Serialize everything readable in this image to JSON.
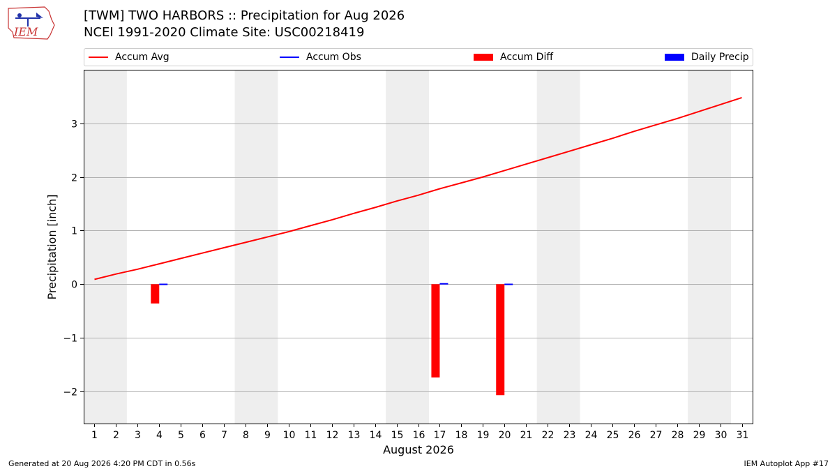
{
  "header": {
    "title_line1": "[TWM] TWO HARBORS :: Precipitation for Aug 2026",
    "title_line2": "NCEI 1991-2020 Climate Site: USC00218419",
    "logo_text": "IEM"
  },
  "legend": {
    "items": [
      {
        "label": "Accum Avg",
        "color": "#ff0000",
        "kind": "line"
      },
      {
        "label": "Accum Obs",
        "color": "#0000ff",
        "kind": "line"
      },
      {
        "label": "Accum Diff",
        "color": "#ff0000",
        "kind": "box"
      },
      {
        "label": "Daily Precip",
        "color": "#0000ff",
        "kind": "box"
      }
    ]
  },
  "footer": {
    "left": "Generated at 20 Aug 2026 4:20 PM CDT in 0.56s",
    "right": "IEM Autoplot App #17"
  },
  "chart_data": {
    "type": "bar",
    "xlabel": "August 2026",
    "ylabel": "Precipitation [inch]",
    "xlim": [
      0.5,
      31.5
    ],
    "ylim": [
      -2.6,
      4.0
    ],
    "yticks": [
      -2,
      -1,
      0,
      1,
      2,
      3
    ],
    "xticks": [
      1,
      2,
      3,
      4,
      5,
      6,
      7,
      8,
      9,
      10,
      11,
      12,
      13,
      14,
      15,
      16,
      17,
      18,
      19,
      20,
      21,
      22,
      23,
      24,
      25,
      26,
      27,
      28,
      29,
      30,
      31
    ],
    "grid": "horizontal",
    "weekend_shading": [
      [
        0.5,
        2.5
      ],
      [
        7.5,
        9.5
      ],
      [
        14.5,
        16.5
      ],
      [
        21.5,
        23.5
      ],
      [
        28.5,
        30.5
      ]
    ],
    "series": [
      {
        "name": "Accum Avg",
        "kind": "line",
        "color": "#ff0000",
        "x": [
          1,
          2,
          3,
          4,
          5,
          6,
          7,
          8,
          9,
          10,
          11,
          12,
          13,
          14,
          15,
          16,
          17,
          18,
          19,
          20,
          21,
          22,
          23,
          24,
          25,
          26,
          27,
          28,
          29,
          30,
          31
        ],
        "values": [
          0.09,
          0.19,
          0.28,
          0.38,
          0.48,
          0.58,
          0.68,
          0.78,
          0.88,
          0.98,
          1.09,
          1.2,
          1.32,
          1.43,
          1.55,
          1.66,
          1.78,
          1.89,
          2.0,
          2.12,
          2.24,
          2.36,
          2.48,
          2.6,
          2.72,
          2.85,
          2.97,
          3.09,
          3.22,
          3.35,
          3.48
        ]
      },
      {
        "name": "Accum Diff",
        "kind": "bar",
        "color": "#ff0000",
        "x": [
          4,
          17,
          20
        ],
        "values": [
          -0.36,
          -1.74,
          -2.07
        ]
      },
      {
        "name": "Daily Precip",
        "kind": "bar",
        "color": "#0000ff",
        "x": [
          4,
          17,
          20
        ],
        "values": [
          0.01,
          0.02,
          0.01
        ]
      }
    ]
  }
}
